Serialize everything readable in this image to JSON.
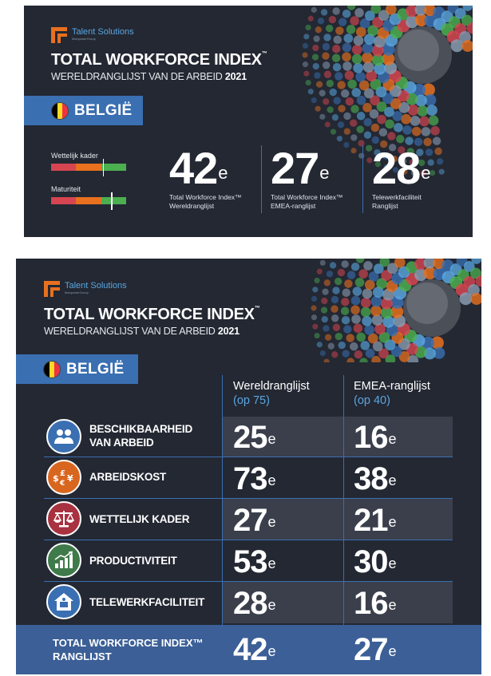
{
  "brand": {
    "name": "Talent Solutions",
    "parent": "ManpowerGroup"
  },
  "title": "TOTAL WORKFORCE INDEX",
  "title_tm": "™",
  "subtitle_prefix": "WERELDRANGLIJST VAN DE ARBEID",
  "subtitle_year": "2021",
  "country": "BELGIË",
  "colors": {
    "panel_bg": "#232833",
    "accent_blue": "#3a6fb2",
    "label_blue": "#5aa6e0",
    "red": "#d64550",
    "orange": "#e8701f",
    "green": "#4caf50"
  },
  "flag_colors": [
    "#000000",
    "#fdda24",
    "#ef3340"
  ],
  "gauges": [
    {
      "label": "Wettelijk kader",
      "value_fraction": 0.69
    },
    {
      "label": "Maturiteit",
      "value_fraction": 0.8
    }
  ],
  "summary_ranks": [
    {
      "rank": "42",
      "suffix": "e",
      "label_line1": "Total Workforce Index™",
      "label_line2": "Wereldranglijst"
    },
    {
      "rank": "27",
      "suffix": "e",
      "label_line1": "Total Workforce Index™",
      "label_line2": "EMEA-ranglijst"
    },
    {
      "rank": "28",
      "suffix": "e",
      "label_line1": "Telewerkfaciliteit",
      "label_line2": "Ranglijst"
    }
  ],
  "table": {
    "columns": [
      {
        "title": "Wereldranglijst",
        "sub": "(op 75)"
      },
      {
        "title": "EMEA-ranglijst",
        "sub": "(op 40)"
      }
    ],
    "rows": [
      {
        "label_line1": "BESCHIKBAARHEID",
        "label_line2": "VAN ARBEID",
        "icon": "people-icon",
        "icon_color": "#3a6fb2",
        "world": "25",
        "emea": "16",
        "suffix": "e"
      },
      {
        "label_line1": "ARBEIDSKOST",
        "label_line2": "",
        "icon": "currency-icon",
        "icon_color": "#d9661f",
        "world": "73",
        "emea": "38",
        "suffix": "e"
      },
      {
        "label_line1": "WETTELIJK KADER",
        "label_line2": "",
        "icon": "scales-icon",
        "icon_color": "#a83240",
        "world": "27",
        "emea": "21",
        "suffix": "e"
      },
      {
        "label_line1": "PRODUCTIVITEIT",
        "label_line2": "",
        "icon": "growth-chart-icon",
        "icon_color": "#3f7a4a",
        "world": "53",
        "emea": "30",
        "suffix": "e"
      },
      {
        "label_line1": "TELEWERKFACILITEIT",
        "label_line2": "",
        "icon": "home-laptop-icon",
        "icon_color": "#3a6fb2",
        "world": "28",
        "emea": "16",
        "suffix": "e"
      }
    ],
    "total": {
      "label_line1": "TOTAL WORKFORCE INDEX™",
      "label_line2": "RANGLIJST",
      "world": "42",
      "emea": "27",
      "suffix": "e"
    }
  }
}
